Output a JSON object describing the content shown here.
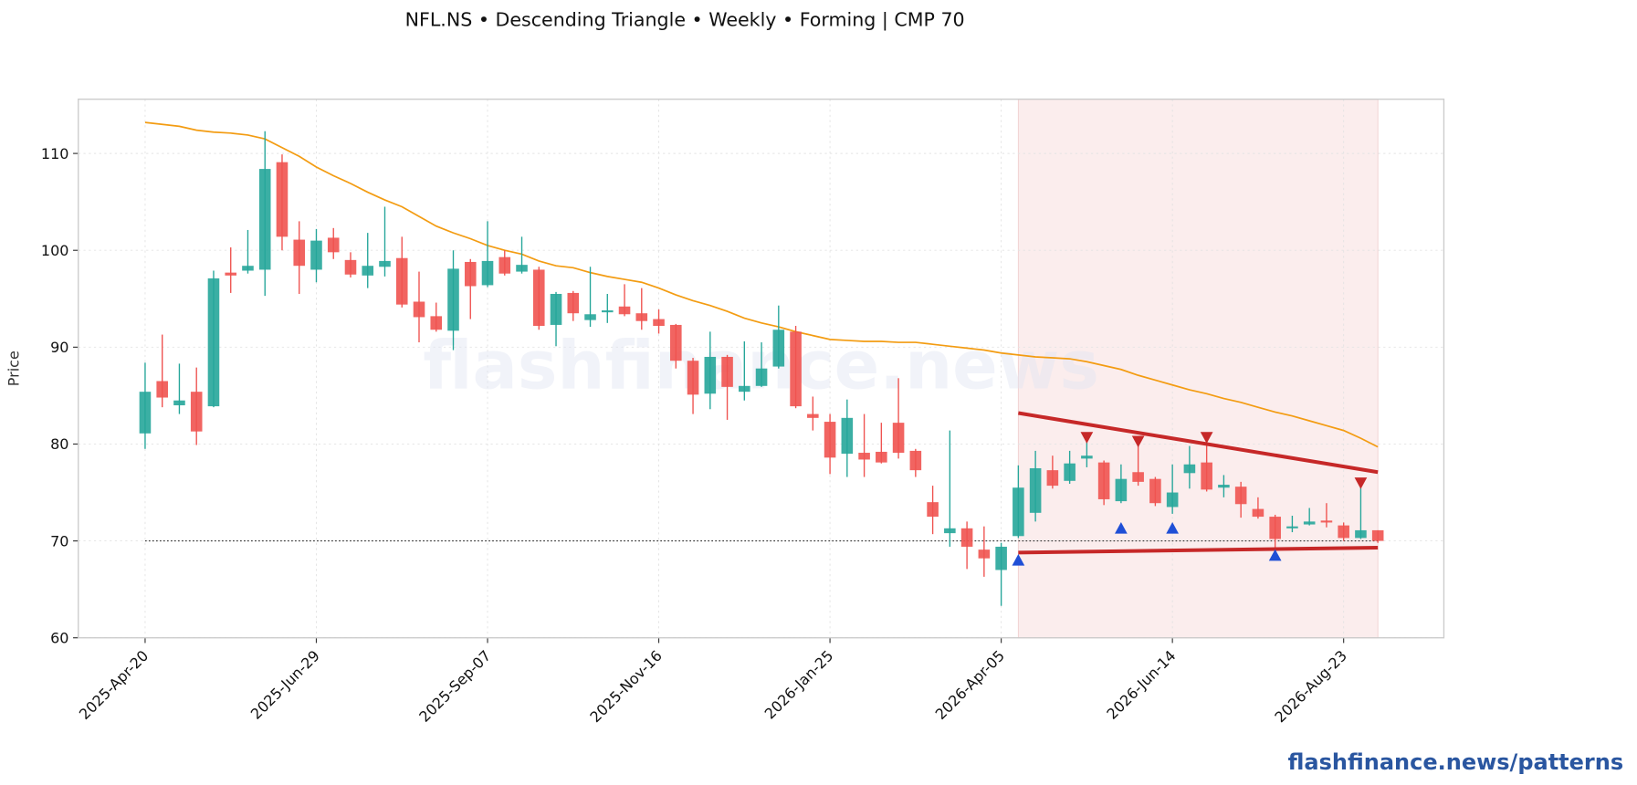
{
  "chart_data": {
    "type": "candlestick",
    "title": "NFL.NS  •  Descending Triangle  •  Weekly  •  Forming  |  CMP 70",
    "ylabel": "Price",
    "watermark": "flashfinance.news",
    "footer": "flashfinance.news/patterns",
    "x": [
      "2025-Apr-20",
      "2025-Apr-27",
      "2025-May-04",
      "2025-May-11",
      "2025-May-18",
      "2025-May-25",
      "2025-Jun-01",
      "2025-Jun-08",
      "2025-Jun-15",
      "2025-Jun-22",
      "2025-Jun-29",
      "2025-Jul-06",
      "2025-Jul-13",
      "2025-Jul-20",
      "2025-Jul-27",
      "2025-Aug-03",
      "2025-Aug-10",
      "2025-Aug-17",
      "2025-Aug-24",
      "2025-Aug-31",
      "2025-Sep-07",
      "2025-Sep-14",
      "2025-Sep-21",
      "2025-Sep-28",
      "2025-Oct-05",
      "2025-Oct-12",
      "2025-Oct-19",
      "2025-Oct-26",
      "2025-Nov-02",
      "2025-Nov-09",
      "2025-Nov-16",
      "2025-Nov-23",
      "2025-Nov-30",
      "2025-Dec-07",
      "2025-Dec-14",
      "2025-Dec-21",
      "2025-Dec-28",
      "2026-Jan-04",
      "2026-Jan-11",
      "2026-Jan-18",
      "2026-Jan-25",
      "2026-Feb-01",
      "2026-Feb-08",
      "2026-Feb-15",
      "2026-Feb-22",
      "2026-Mar-01",
      "2026-Mar-08",
      "2026-Mar-15",
      "2026-Mar-22",
      "2026-Mar-29",
      "2026-Apr-05",
      "2026-Apr-12",
      "2026-Apr-19",
      "2026-Apr-26",
      "2026-May-03",
      "2026-May-10",
      "2026-May-17",
      "2026-May-24",
      "2026-May-31",
      "2026-Jun-07",
      "2026-Jun-14",
      "2026-Jun-21",
      "2026-Jun-28",
      "2026-Jul-05",
      "2026-Jul-12",
      "2026-Jul-19",
      "2026-Jul-26",
      "2026-Aug-02",
      "2026-Aug-09",
      "2026-Aug-16",
      "2026-Aug-23",
      "2026-Aug-30",
      "2026-Sep-06"
    ],
    "open": [
      81.1,
      86.5,
      84.0,
      85.4,
      83.9,
      97.7,
      97.9,
      98.0,
      109.1,
      101.1,
      98.0,
      101.3,
      99.0,
      97.4,
      98.3,
      99.2,
      94.7,
      93.2,
      91.7,
      98.8,
      96.4,
      99.3,
      97.8,
      98.0,
      92.3,
      95.6,
      92.8,
      93.6,
      94.2,
      93.5,
      92.9,
      92.3,
      88.6,
      85.2,
      89.0,
      85.4,
      86.0,
      88.0,
      91.6,
      83.1,
      82.3,
      79.0,
      79.1,
      79.2,
      82.2,
      79.3,
      74.0,
      70.8,
      71.3,
      69.1,
      67.0,
      70.5,
      72.9,
      77.3,
      76.2,
      78.5,
      78.1,
      74.1,
      77.1,
      76.4,
      73.5,
      77.0,
      78.1,
      75.5,
      75.6,
      73.3,
      72.5,
      71.3,
      71.7,
      72.1,
      71.6,
      70.3,
      71.1
    ],
    "high": [
      88.4,
      91.3,
      88.3,
      87.9,
      97.9,
      100.3,
      102.1,
      112.3,
      109.9,
      103.0,
      102.2,
      102.3,
      99.8,
      101.8,
      104.5,
      101.4,
      97.8,
      94.6,
      100.0,
      99.1,
      103.0,
      100.0,
      101.4,
      98.3,
      95.7,
      95.8,
      98.3,
      95.5,
      96.5,
      96.1,
      93.9,
      92.4,
      88.9,
      91.6,
      89.2,
      90.6,
      90.5,
      94.3,
      92.2,
      84.9,
      83.1,
      84.6,
      83.1,
      82.2,
      86.8,
      79.5,
      75.7,
      81.4,
      72.0,
      71.5,
      69.8,
      77.8,
      79.3,
      78.8,
      79.3,
      81.0,
      78.3,
      77.9,
      80.6,
      76.6,
      77.9,
      79.8,
      80.8,
      76.8,
      76.1,
      74.5,
      72.7,
      72.6,
      73.4,
      73.9,
      71.9,
      75.9,
      71.1
    ],
    "low": [
      79.5,
      83.8,
      83.1,
      79.9,
      83.8,
      95.6,
      97.6,
      95.3,
      100.0,
      95.5,
      96.7,
      99.1,
      97.2,
      96.1,
      97.3,
      94.1,
      90.5,
      91.6,
      89.7,
      92.9,
      96.2,
      97.4,
      97.6,
      91.8,
      90.1,
      92.7,
      92.1,
      92.5,
      93.2,
      91.8,
      91.4,
      87.8,
      83.1,
      83.6,
      82.5,
      84.5,
      85.9,
      87.8,
      83.7,
      81.4,
      76.9,
      76.6,
      76.6,
      78.0,
      78.5,
      76.6,
      70.7,
      69.4,
      67.1,
      66.3,
      63.3,
      70.3,
      72.0,
      75.4,
      75.9,
      77.6,
      73.7,
      73.9,
      75.7,
      73.6,
      72.8,
      75.4,
      75.1,
      74.5,
      72.4,
      72.3,
      69.2,
      70.9,
      71.6,
      71.4,
      70.0,
      70.2,
      69.8
    ],
    "close": [
      85.4,
      84.8,
      84.5,
      81.3,
      97.1,
      97.4,
      98.4,
      108.4,
      101.4,
      98.4,
      101.0,
      99.8,
      97.5,
      98.4,
      98.9,
      94.4,
      93.1,
      91.8,
      98.1,
      96.3,
      98.9,
      97.6,
      98.5,
      92.2,
      95.5,
      93.5,
      93.4,
      93.8,
      93.4,
      92.7,
      92.2,
      88.6,
      85.1,
      89.0,
      85.9,
      86.0,
      87.8,
      91.8,
      83.9,
      82.7,
      78.6,
      82.7,
      78.4,
      78.1,
      79.1,
      77.3,
      72.5,
      71.3,
      69.4,
      68.2,
      69.4,
      75.5,
      77.5,
      75.7,
      78.0,
      78.8,
      74.3,
      76.4,
      76.1,
      73.9,
      75.0,
      77.9,
      75.3,
      75.8,
      73.8,
      72.5,
      70.2,
      71.5,
      72.0,
      71.9,
      70.3,
      71.1,
      70.0
    ],
    "up_color": "#26a69a",
    "down_color": "#ef5350",
    "ma": {
      "color": "#f39c12",
      "values": [
        113.2,
        113.0,
        112.8,
        112.4,
        112.2,
        112.1,
        111.9,
        111.5,
        110.6,
        109.7,
        108.6,
        107.7,
        106.9,
        106.0,
        105.2,
        104.5,
        103.5,
        102.5,
        101.8,
        101.2,
        100.5,
        100.0,
        99.6,
        98.9,
        98.4,
        98.2,
        97.7,
        97.3,
        97.0,
        96.7,
        96.1,
        95.4,
        94.8,
        94.3,
        93.7,
        93.0,
        92.5,
        92.1,
        91.6,
        91.2,
        90.8,
        90.7,
        90.6,
        90.6,
        90.5,
        90.5,
        90.3,
        90.1,
        89.9,
        89.7,
        89.4,
        89.2,
        89.0,
        88.9,
        88.8,
        88.5,
        88.1,
        87.7,
        87.1,
        86.6,
        86.1,
        85.6,
        85.2,
        84.7,
        84.3,
        83.8,
        83.3,
        82.9,
        82.4,
        81.9,
        81.4,
        80.6,
        79.7
      ]
    },
    "zone": {
      "x": [
        "2026-Apr-12",
        "2026-Sep-06"
      ],
      "color": "#f9e6e6"
    },
    "resistance": {
      "x": [
        "2026-Apr-12",
        "2026-Sep-06"
      ],
      "values": [
        83.2,
        77.1
      ],
      "color": "#c62828"
    },
    "support": {
      "x": [
        "2026-Apr-12",
        "2026-Sep-06"
      ],
      "values": [
        68.8,
        69.3
      ],
      "color": "#c62828"
    },
    "cmp": 70,
    "swing_highs": {
      "x": [
        "2026-May-10",
        "2026-May-31",
        "2026-Jun-28",
        "2026-Aug-30"
      ],
      "values": [
        80.6,
        80.2,
        80.6,
        75.9
      ],
      "color": "#c62828"
    },
    "swing_lows": {
      "x": [
        "2026-Apr-12",
        "2026-May-24",
        "2026-Jun-14",
        "2026-Jul-26"
      ],
      "values": [
        68.1,
        71.4,
        71.4,
        68.6
      ],
      "color": "#1f4fd6"
    },
    "ylim": [
      60,
      115.6
    ],
    "yticks": [
      60,
      70,
      80,
      90,
      100,
      110
    ],
    "xticks": [
      "2025-Apr-20",
      "2025-Jun-29",
      "2025-Sep-07",
      "2025-Nov-16",
      "2026-Jan-25",
      "2026-Apr-05",
      "2026-Jun-14",
      "2026-Aug-23"
    ],
    "grid": true
  }
}
